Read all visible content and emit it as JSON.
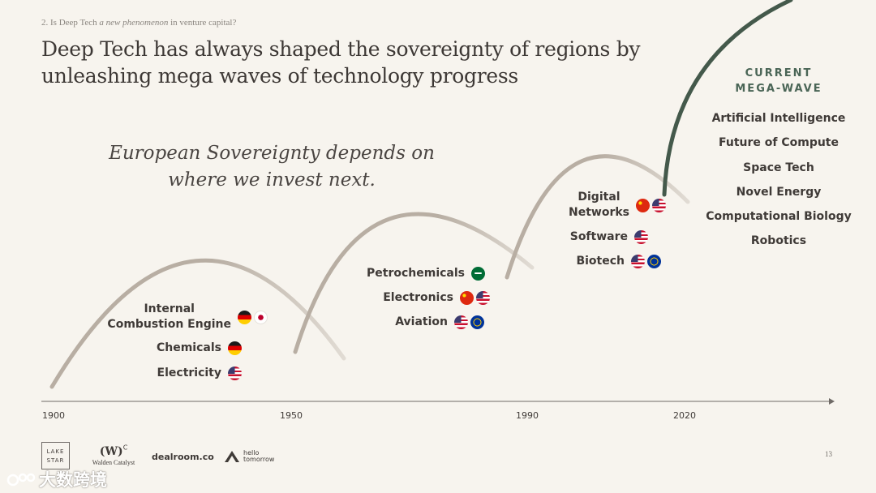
{
  "header": {
    "breadcrumb_prefix": "2. Is Deep Tech ",
    "breadcrumb_italic": "a new phenomenon",
    "breadcrumb_suffix": " in venture capital?",
    "title_line1": "Deep Tech has always shaped the sovereignty of regions by",
    "title_line2": "unleashing mega waves of technology progress"
  },
  "quote": {
    "line1": "European Sovereignty depends on",
    "line2": "where we invest next."
  },
  "colors": {
    "background": "#f7f4ee",
    "wave": "#b8aea3",
    "current_wave": "#44594b",
    "accent_heading": "#4a6556"
  },
  "timeline": {
    "years": [
      "1900",
      "1950",
      "1990",
      "2020"
    ]
  },
  "waves": [
    {
      "items": [
        {
          "line1": "Internal",
          "line2": "Combustion Engine",
          "flags": [
            "de",
            "jp"
          ]
        },
        {
          "line1": "Chemicals",
          "flags": [
            "de"
          ]
        },
        {
          "line1": "Electricity",
          "flags": [
            "us"
          ]
        }
      ]
    },
    {
      "items": [
        {
          "line1": "Petrochemicals",
          "flags": [
            "sa"
          ]
        },
        {
          "line1": "Electronics",
          "flags": [
            "cn",
            "us"
          ]
        },
        {
          "line1": "Aviation",
          "flags": [
            "us",
            "eu"
          ]
        }
      ]
    },
    {
      "items": [
        {
          "line1": "Digital",
          "line2": "Networks",
          "flags": [
            "cn",
            "us"
          ]
        },
        {
          "line1": "Software",
          "flags": [
            "us"
          ]
        },
        {
          "line1": "Biotech",
          "flags": [
            "us",
            "eu"
          ]
        }
      ]
    }
  ],
  "current": {
    "heading_line1": "CURRENT",
    "heading_line2": "MEGA-WAVE",
    "items": [
      "Artificial Intelligence",
      "Future of Compute",
      "Space Tech",
      "Novel Energy",
      "Computational Biology",
      "Robotics"
    ]
  },
  "footer": {
    "page_number": "13",
    "lakestar_line1": "LAKE",
    "lakestar_line2": "STAR",
    "wc_mark": "(W)",
    "wc_sup": "C",
    "wc_name": "Walden Catalyst",
    "dealroom": "dealroom.co",
    "hello_line1": "hello",
    "hello_line2": "tomorrow",
    "watermark": "大数跨境"
  }
}
